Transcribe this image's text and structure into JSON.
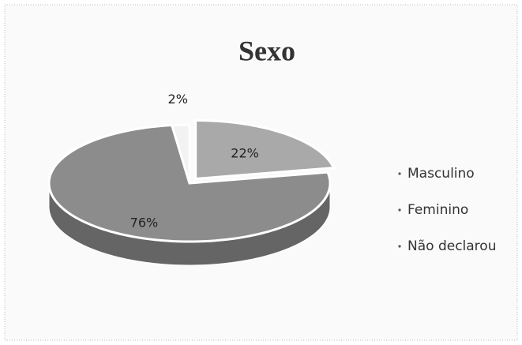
{
  "chart_data": {
    "type": "pie",
    "title": "Sexo",
    "categories": [
      "Masculino",
      "Feminino",
      "Não declarou"
    ],
    "values": [
      76,
      22,
      2
    ],
    "value_labels": [
      "76%",
      "22%",
      "2%"
    ],
    "colors": [
      "#8c8c8c",
      "#a9a9a9",
      "#f2f2f2"
    ],
    "legend": "right"
  }
}
